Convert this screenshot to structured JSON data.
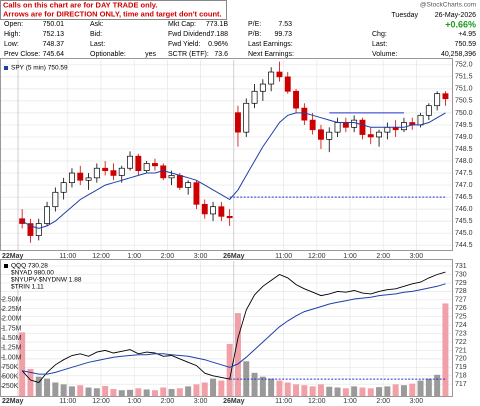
{
  "note": {
    "line1": "Calls on this chart are for DAY TRADE only.",
    "line2": "Arrows are for DIRECTION ONLY, time and target don't count."
  },
  "header": {
    "watermark": "@StockCharts.com",
    "day": "Tuesday",
    "date": "26-May-2026",
    "change_pct": "+0.66%",
    "rows": [
      [
        {
          "label": "Open:",
          "value": "750.01"
        },
        {
          "label": "Ask:"
        },
        {
          "label": "Mkt Cap:",
          "value": "773.1B"
        },
        {
          "label": "P/E:",
          "value": "7.53"
        }
      ],
      [
        {
          "label": "High:",
          "value": "752.13"
        },
        {
          "label": "Bid:"
        },
        {
          "label": "Fwd Dividend:",
          "value": "7.188"
        },
        {
          "label": "P/B:",
          "value": "99.73"
        }
      ],
      [
        {
          "label": "Low:",
          "value": "748.37"
        },
        {
          "label": "Last:"
        },
        {
          "label": "Fwd Yield:",
          "value": "0.96%"
        },
        {
          "label": "Last Earnings:"
        }
      ],
      [
        {
          "label": "Prev Close:",
          "value": "745.64"
        },
        {
          "label": "Optionable:",
          "value": "yes"
        },
        {
          "label": "SCTR (ETF):",
          "value": "73.6"
        },
        {
          "label": "Next Earnings:"
        }
      ]
    ],
    "right": [
      {
        "label": "Chg:",
        "value": "+4.95"
      },
      {
        "label": "Last:",
        "value": "750.59"
      },
      {
        "label": "Volume:",
        "value": "40,258,396"
      }
    ]
  },
  "chart_data": [
    {
      "type": "candlestick",
      "legend": [
        "SPY (5 min) 750.59"
      ],
      "categories": [
        "22May",
        null,
        null,
        null,
        null,
        null,
        "11:00",
        null,
        null,
        null,
        "12:00",
        null,
        null,
        null,
        "1:00",
        null,
        null,
        null,
        "2:00",
        null,
        null,
        null,
        "3:00",
        null,
        null,
        null,
        "26May",
        null,
        null,
        null,
        null,
        null,
        "11:00",
        null,
        null,
        null,
        "12:00",
        null,
        null,
        null,
        "1:00",
        null,
        null,
        null,
        "2:00",
        null,
        null,
        null,
        "3:00",
        null,
        null,
        null
      ],
      "open": [
        745.6,
        745.4,
        744.9,
        745.4,
        746.1,
        746.7,
        747.1,
        747.5,
        747.2,
        747.3,
        747.7,
        747.6,
        747.4,
        747.7,
        748.2,
        747.6,
        747.9,
        747.8,
        747.3,
        747.4,
        746.9,
        747.1,
        746.2,
        745.8,
        746.1,
        745.7,
        750.01,
        749.2,
        750.4,
        750.9,
        751.2,
        751.7,
        751.5,
        750.9,
        750.2,
        749.7,
        749.3,
        748.9,
        749.2,
        749.6,
        749.4,
        749.7,
        749.1,
        749.0,
        749.2,
        749.4,
        749.3,
        749.6,
        749.5,
        749.9,
        750.3,
        750.8
      ],
      "high": [
        746.0,
        745.6,
        745.6,
        746.3,
        746.9,
        747.3,
        747.7,
        747.8,
        747.5,
        747.9,
        748.0,
        747.9,
        747.8,
        748.4,
        748.3,
        748.0,
        748.1,
        747.9,
        747.6,
        747.5,
        747.2,
        747.2,
        746.4,
        746.3,
        746.3,
        746.0,
        750.3,
        750.6,
        751.2,
        751.4,
        751.9,
        752.13,
        751.7,
        751.0,
        750.4,
        750.0,
        749.5,
        749.4,
        749.8,
        749.8,
        749.9,
        749.8,
        749.4,
        749.3,
        749.6,
        749.7,
        749.8,
        749.8,
        750.0,
        750.4,
        750.9,
        750.9
      ],
      "low": [
        745.2,
        744.6,
        744.7,
        745.3,
        745.9,
        746.4,
        746.9,
        747.0,
        746.8,
        747.1,
        747.4,
        747.2,
        747.1,
        747.6,
        747.4,
        747.5,
        747.6,
        747.2,
        747.0,
        746.8,
        746.6,
        746.0,
        745.6,
        745.5,
        745.5,
        745.3,
        748.6,
        749.0,
        750.2,
        750.5,
        750.9,
        751.3,
        750.8,
        750.0,
        749.5,
        749.1,
        748.5,
        748.37,
        749.0,
        749.2,
        749.2,
        748.9,
        748.7,
        748.6,
        748.9,
        749.0,
        749.2,
        749.3,
        749.4,
        749.7,
        750.1,
        750.3
      ],
      "close": [
        745.4,
        744.9,
        745.4,
        746.1,
        746.7,
        747.1,
        747.5,
        747.2,
        747.3,
        747.7,
        747.6,
        747.4,
        747.7,
        748.2,
        747.6,
        747.9,
        747.8,
        747.3,
        747.4,
        746.9,
        747.1,
        746.2,
        745.8,
        746.1,
        745.7,
        745.64,
        749.2,
        750.4,
        750.9,
        751.2,
        751.7,
        751.5,
        750.9,
        750.2,
        749.7,
        749.3,
        748.9,
        749.2,
        749.6,
        749.4,
        749.7,
        749.1,
        749.0,
        749.2,
        749.4,
        749.3,
        749.6,
        749.5,
        749.9,
        750.3,
        750.8,
        750.59
      ],
      "up_color": "#000000",
      "down_color": "#cc0000",
      "series": [
        {
          "color": "#1f3fa8",
          "style": "solid",
          "values": [
            745.5,
            745.3,
            745.2,
            745.3,
            745.5,
            745.8,
            746.1,
            746.4,
            746.6,
            746.8,
            747.0,
            747.1,
            747.2,
            747.3,
            747.4,
            747.5,
            747.5,
            747.6,
            747.5,
            747.4,
            747.3,
            747.2,
            747.0,
            746.8,
            746.6,
            746.4,
            746.8,
            747.4,
            748.0,
            748.6,
            749.1,
            749.6,
            749.9,
            750.0,
            750.0,
            749.9,
            749.8,
            749.7,
            749.6,
            749.6,
            749.6,
            749.5,
            749.4,
            749.4,
            749.4,
            749.4,
            749.4,
            749.5,
            749.5,
            749.6,
            749.8,
            750.0
          ]
        },
        {
          "color": "#2233cc",
          "style": "dashed",
          "values": [
            null,
            null,
            null,
            null,
            null,
            null,
            null,
            null,
            null,
            null,
            null,
            null,
            null,
            null,
            null,
            null,
            null,
            null,
            null,
            null,
            null,
            null,
            null,
            null,
            null,
            746.5,
            746.5,
            746.5,
            746.5,
            746.5,
            746.5,
            746.5,
            746.5,
            746.5,
            746.5,
            746.5,
            746.5,
            746.5,
            746.5,
            746.5,
            746.5,
            746.5,
            746.5,
            746.5,
            746.5,
            746.5,
            746.5,
            746.5,
            746.5,
            746.5,
            746.5,
            746.5
          ]
        },
        {
          "color": "#2233cc",
          "style": "solid",
          "values": [
            null,
            null,
            null,
            null,
            null,
            null,
            null,
            null,
            null,
            null,
            null,
            null,
            null,
            null,
            null,
            null,
            null,
            null,
            null,
            null,
            null,
            null,
            null,
            null,
            null,
            null,
            null,
            null,
            null,
            null,
            null,
            null,
            null,
            null,
            null,
            null,
            null,
            750.0,
            750.0,
            750.0,
            750.0,
            750.0,
            750.0,
            750.0,
            750.0,
            750.0,
            750.0,
            null,
            null,
            null,
            null,
            null
          ]
        }
      ],
      "ylim": [
        744.3,
        752.2
      ],
      "yticks": [
        744.5,
        {
          "value": 745,
          "label": "745.0"
        },
        745.5,
        {
          "value": 746,
          "label": "746.0"
        },
        746.5,
        {
          "value": 747,
          "label": "747.0"
        },
        747.5,
        {
          "value": 748,
          "label": "748.0"
        },
        748.5,
        {
          "value": 749,
          "label": "749.0"
        },
        749.5,
        {
          "value": 750,
          "label": "750.0"
        },
        750.5,
        {
          "value": 751,
          "label": "751.0"
        },
        751.5,
        {
          "value": 752,
          "label": "752.0"
        }
      ],
      "grid": true
    },
    {
      "type": "line",
      "legend": [
        "QQQ 730.28",
        "$NYAD 980.00",
        "$NYUPV-$NYDNW 1.88",
        "$TRIN 1.11"
      ],
      "categories": [
        "22May",
        null,
        null,
        null,
        null,
        null,
        "11:00",
        null,
        null,
        null,
        "12:00",
        null,
        null,
        null,
        "1:00",
        null,
        null,
        null,
        "2:00",
        null,
        null,
        null,
        "3:00",
        null,
        null,
        null,
        "26May",
        null,
        null,
        null,
        null,
        null,
        "11:00",
        null,
        null,
        null,
        "12:00",
        null,
        null,
        null,
        "1:00",
        null,
        null,
        null,
        "2:00",
        null,
        null,
        null,
        "3:00",
        null,
        null,
        null
      ],
      "series": [
        {
          "color": "#000000",
          "style": "solid",
          "values": [
            718.6,
            717.5,
            717.2,
            718.4,
            719.3,
            719.9,
            720.4,
            720.6,
            720.3,
            720.8,
            721.0,
            720.7,
            720.9,
            721.1,
            720.6,
            720.8,
            720.7,
            720.3,
            720.4,
            720.0,
            719.6,
            719.2,
            718.3,
            718.0,
            717.8,
            717.6,
            722.5,
            725.8,
            727.6,
            728.6,
            729.3,
            730.0,
            729.6,
            728.8,
            728.3,
            727.9,
            727.5,
            727.7,
            728.0,
            727.9,
            728.1,
            727.8,
            727.7,
            728.0,
            728.2,
            728.3,
            728.6,
            728.9,
            729.1,
            729.6,
            730.0,
            730.28
          ]
        },
        {
          "color": "#1f3fa8",
          "style": "solid",
          "values": [
            718.6,
            718.4,
            718.2,
            718.2,
            718.4,
            718.7,
            719.0,
            719.3,
            719.6,
            719.8,
            720.0,
            720.2,
            720.3,
            720.4,
            720.5,
            720.5,
            720.6,
            720.6,
            720.5,
            720.4,
            720.3,
            720.1,
            719.9,
            719.6,
            719.3,
            719.0,
            719.4,
            720.2,
            721.1,
            722.0,
            722.9,
            723.8,
            724.5,
            725.1,
            725.6,
            725.9,
            726.2,
            726.5,
            726.7,
            726.9,
            727.1,
            727.2,
            727.3,
            727.5,
            727.6,
            727.7,
            727.9,
            728.0,
            728.2,
            728.4,
            728.6,
            728.9
          ]
        },
        {
          "color": "#2233cc",
          "style": "dashed",
          "values": [
            null,
            null,
            null,
            null,
            null,
            null,
            null,
            null,
            null,
            null,
            null,
            null,
            null,
            null,
            null,
            null,
            null,
            null,
            null,
            null,
            null,
            null,
            null,
            null,
            null,
            717.6,
            717.6,
            717.6,
            717.6,
            717.6,
            717.6,
            717.6,
            717.6,
            717.6,
            717.6,
            717.6,
            717.6,
            717.6,
            717.6,
            717.6,
            717.6,
            717.6,
            717.6,
            717.6,
            717.6,
            717.6,
            717.6,
            717.6,
            717.6,
            717.6,
            717.6,
            717.6
          ]
        }
      ],
      "ylim": [
        715.6,
        731.6
      ],
      "yticks": [
        717,
        718,
        719,
        720,
        721,
        722,
        723,
        724,
        725,
        726,
        727,
        728,
        729,
        730,
        731
      ],
      "volume": {
        "up_color": "#9a9a9a",
        "down_color": "#f2a0a8",
        "values": [
          1650000,
          700000,
          500000,
          450000,
          350000,
          300000,
          250000,
          280000,
          220000,
          200000,
          260000,
          180000,
          150000,
          160000,
          200000,
          170000,
          150000,
          220000,
          180000,
          200000,
          250000,
          300000,
          350000,
          450000,
          400000,
          1350000,
          2150000,
          900000,
          600000,
          500000,
          450000,
          400000,
          350000,
          300000,
          280000,
          250000,
          300000,
          240000,
          220000,
          200000,
          250000,
          220000,
          200000,
          230000,
          250000,
          300000,
          280000,
          320000,
          400000,
          450000,
          550000,
          2400000
        ],
        "ylim": [
          0,
          3500000
        ],
        "yticks": [
          {
            "value": 250000,
            "label": "250K"
          },
          {
            "value": 500000,
            "label": "500K"
          },
          {
            "value": 750000,
            "label": "750K"
          },
          {
            "value": 1000000,
            "label": "1.00M"
          },
          {
            "value": 1250000,
            "label": "1.25M"
          },
          {
            "value": 1500000,
            "label": "1.50M"
          },
          {
            "value": 1750000,
            "label": "1.75M"
          },
          {
            "value": 2000000,
            "label": "2.00M"
          },
          {
            "value": 2250000,
            "label": "2.25M"
          },
          {
            "value": 2500000,
            "label": "2.50M"
          }
        ]
      },
      "grid": true
    }
  ]
}
